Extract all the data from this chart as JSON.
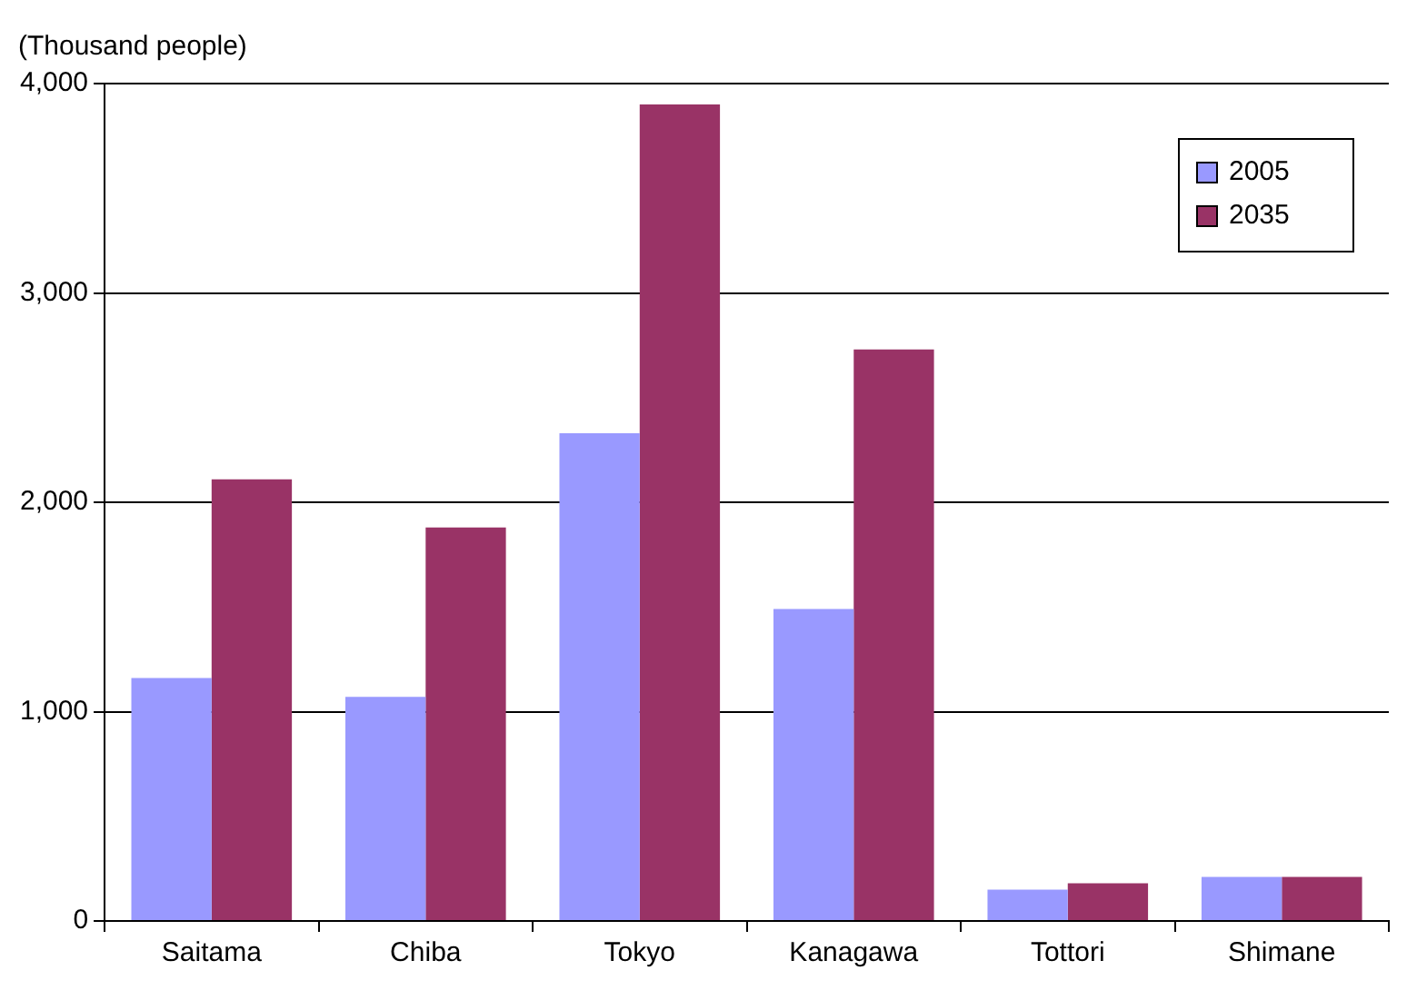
{
  "chart_data": {
    "type": "bar",
    "ylabel": "(Thousand people)",
    "categories": [
      "Saitama",
      "Chiba",
      "Tokyo",
      "Kanagawa",
      "Tottori",
      "Shimane"
    ],
    "series": [
      {
        "name": "2005",
        "color": "#9999ff",
        "values": [
          1160,
          1070,
          2330,
          1490,
          150,
          210
        ]
      },
      {
        "name": "2035",
        "color": "#993366",
        "values": [
          2110,
          1880,
          3900,
          2730,
          180,
          210
        ]
      }
    ],
    "ylim": [
      0,
      4000
    ],
    "yticks": [
      {
        "value": 0,
        "label": "0"
      },
      {
        "value": 1000,
        "label": "1,000"
      },
      {
        "value": 2000,
        "label": "2,000"
      },
      {
        "value": 3000,
        "label": "3,000"
      },
      {
        "value": 4000,
        "label": "4,000"
      }
    ],
    "grid": "y",
    "legend": "top right"
  }
}
